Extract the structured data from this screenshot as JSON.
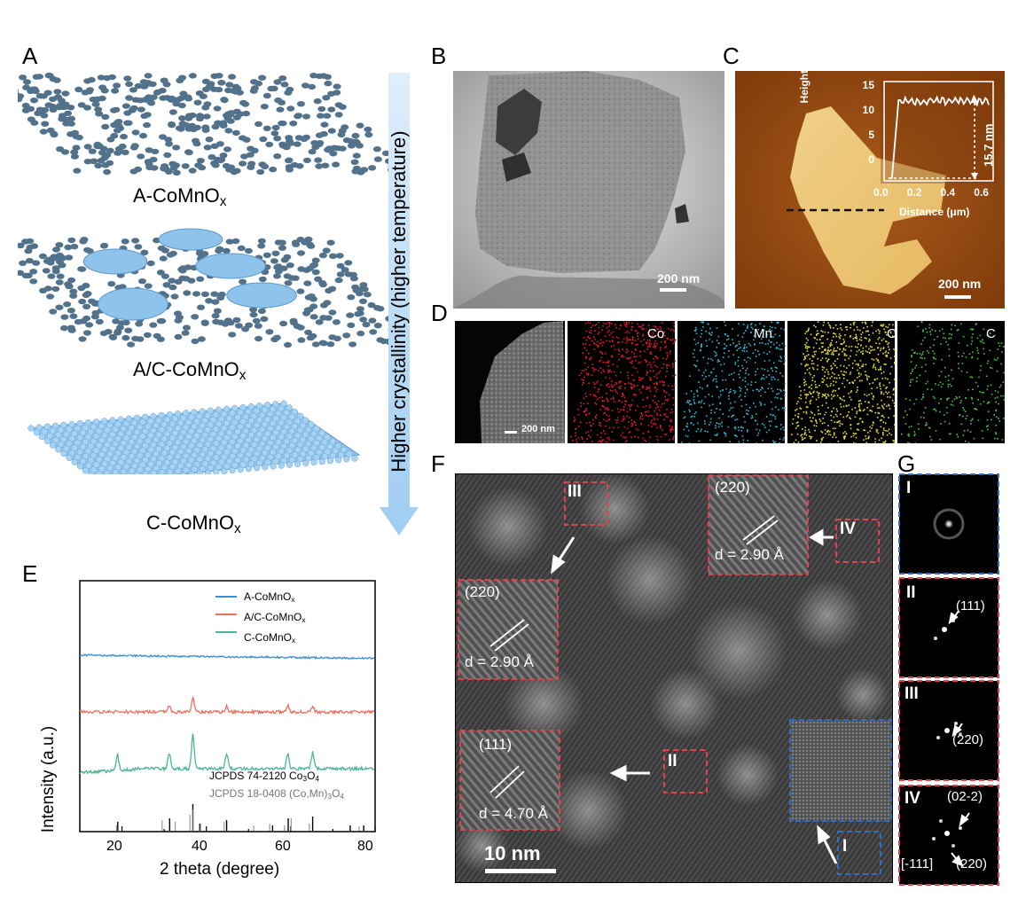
{
  "panel_labels": {
    "A": "A",
    "B": "B",
    "C": "C",
    "D": "D",
    "E": "E",
    "F": "F",
    "G": "G"
  },
  "panel_a": {
    "captions": [
      {
        "main": "A-CoMnO",
        "sub": "x"
      },
      {
        "main": "A/C-CoMnO",
        "sub": "x"
      },
      {
        "main": "C-CoMnO",
        "sub": "x"
      }
    ],
    "arrow_label": "Higher crystallinity (higher temperature)"
  },
  "panel_b": {
    "scale_bar": "200 nm"
  },
  "panel_c": {
    "scale_bar": "200 nm",
    "inset": {
      "ylabel": "Height (nm)",
      "xlabel": "Distance (μm)",
      "yticks": [
        "15",
        "10",
        "5",
        "0"
      ],
      "xticks": [
        "0.0",
        "0.2",
        "0.4",
        "0.6"
      ],
      "step_label": "15.7 nm"
    }
  },
  "panel_d": {
    "scale_bar": "200 nm",
    "elements": [
      "Co",
      "Mn",
      "O",
      "C"
    ],
    "colors": {
      "Co": "#e8192c",
      "Mn": "#2fb9d6",
      "O": "#e6dc2a",
      "C": "#4fc24a"
    }
  },
  "panel_e": {
    "legend": [
      {
        "main": "A-CoMnO",
        "sub": "x",
        "color": "#3a8ed6"
      },
      {
        "main": "A/C-CoMnO",
        "sub": "x",
        "color": "#ee6e5e"
      },
      {
        "main": "C-CoMnO",
        "sub": "x",
        "color": "#4db597"
      }
    ],
    "ref1": {
      "main": "JCPDS 74-2120 Co",
      "sub1": "3",
      "mid": "O",
      "sub2": "4"
    },
    "ref2": {
      "main": "JCPDS 18-0408 (Co,Mn)",
      "sub1": "3",
      "mid": "O",
      "sub2": "4"
    },
    "ylabel": "Intensity (a.u.)",
    "xlabel": "2 theta (degree)",
    "xticks": [
      "20",
      "40",
      "60",
      "80"
    ]
  },
  "panel_f": {
    "scale_bar": "10 nm",
    "regions": [
      "I",
      "II",
      "III",
      "IV"
    ],
    "insets": [
      {
        "plane": "(220)",
        "d": "d = 2.90 Å"
      },
      {
        "plane": "(220)",
        "d": "d = 2.90 Å"
      },
      {
        "plane": "(111)",
        "d": "d = 4.70 Å"
      }
    ]
  },
  "panel_g": {
    "rows": [
      {
        "roman": "I",
        "labels": []
      },
      {
        "roman": "II",
        "labels": [
          "(111)"
        ]
      },
      {
        "roman": "III",
        "labels": [
          "(220)"
        ]
      },
      {
        "roman": "IV",
        "labels": [
          "(02-2)",
          "[-111]",
          "(220)"
        ]
      }
    ]
  },
  "chart_data": {
    "type": "line",
    "title": "",
    "xlabel": "2 theta (degree)",
    "ylabel": "Intensity (a.u.)",
    "xlim": [
      10,
      80
    ],
    "series": [
      {
        "name": "A-CoMnOx",
        "peaks": []
      },
      {
        "name": "A/C-CoMnOx",
        "peaks": [
          31.2,
          36.8,
          44.8,
          59.3,
          65.2
        ]
      },
      {
        "name": "C-CoMnOx",
        "peaks": [
          18.9,
          31.2,
          36.8,
          44.8,
          59.3,
          65.2
        ]
      }
    ],
    "reference_patterns": [
      {
        "name": "JCPDS 74-2120 Co3O4",
        "positions": [
          19.0,
          31.3,
          36.8,
          38.5,
          44.8,
          55.7,
          59.4,
          65.2,
          74.1,
          77.3
        ]
      },
      {
        "name": "JCPDS 18-0408 (Co,Mn)3O4",
        "positions": [
          18.5,
          29.3,
          32.4,
          35.9,
          36.5,
          38.1,
          44.0,
          51.0,
          54.8,
          58.3,
          59.9,
          64.2,
          76.0
        ]
      }
    ]
  }
}
